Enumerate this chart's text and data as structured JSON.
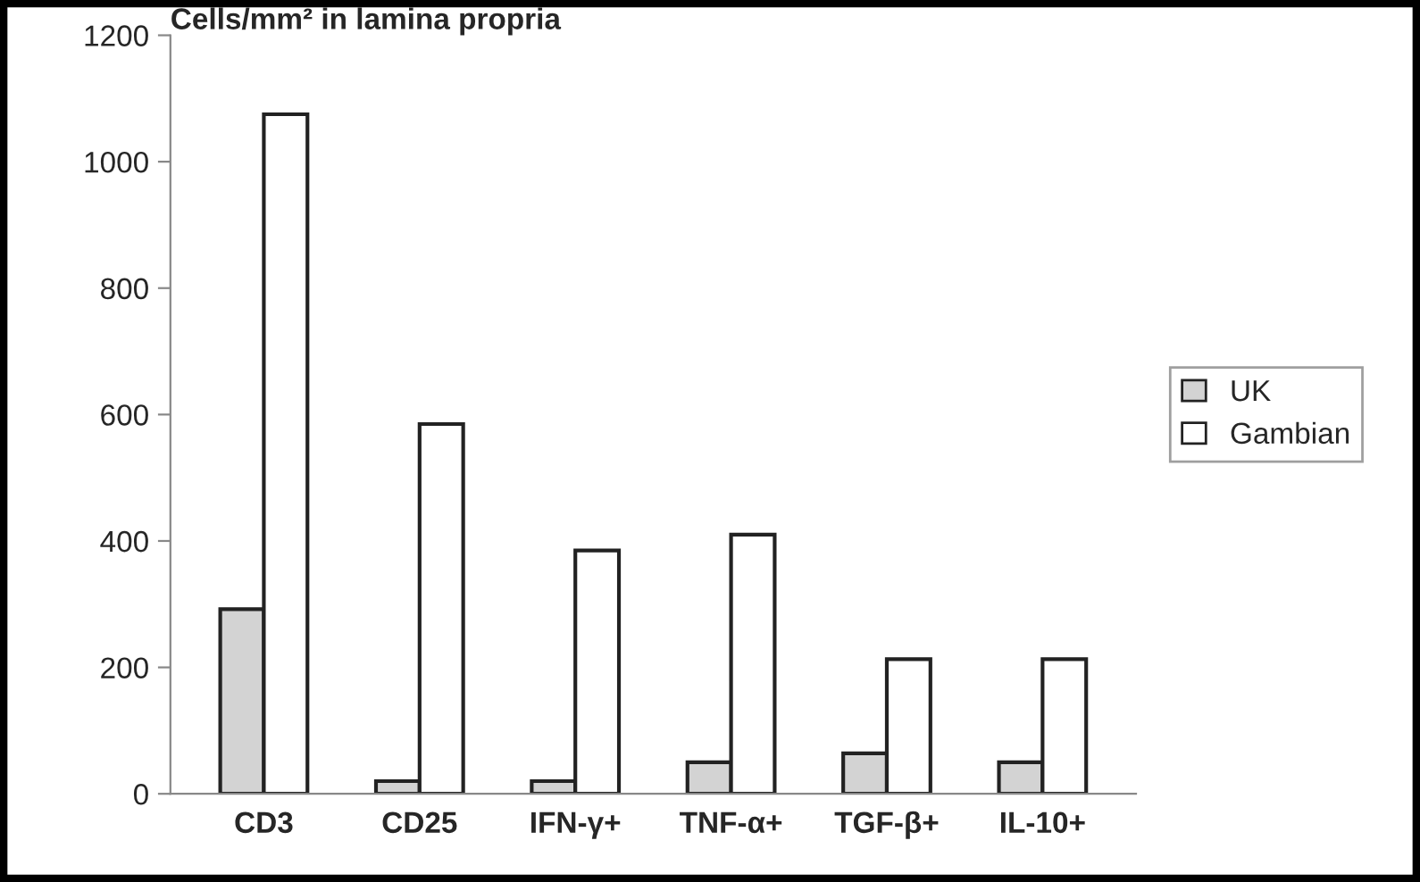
{
  "chart_data": {
    "type": "bar",
    "ylabel": "Cells/mm² in lamina propria",
    "categories": [
      "CD3",
      "CD25",
      "IFN-γ+",
      "TNF-α+",
      "TGF-β+",
      "IL-10+"
    ],
    "series": [
      {
        "name": "UK",
        "color": "#d3d3d3",
        "values": [
          292,
          20,
          20,
          50,
          64,
          50
        ]
      },
      {
        "name": "Gambian",
        "color": "#ffffff",
        "values": [
          1075,
          585,
          385,
          410,
          213,
          213
        ]
      }
    ],
    "ylim": [
      0,
      1200
    ],
    "yticks": [
      0,
      200,
      400,
      600,
      800,
      1000,
      1200
    ],
    "grid": false,
    "legend": "right"
  }
}
